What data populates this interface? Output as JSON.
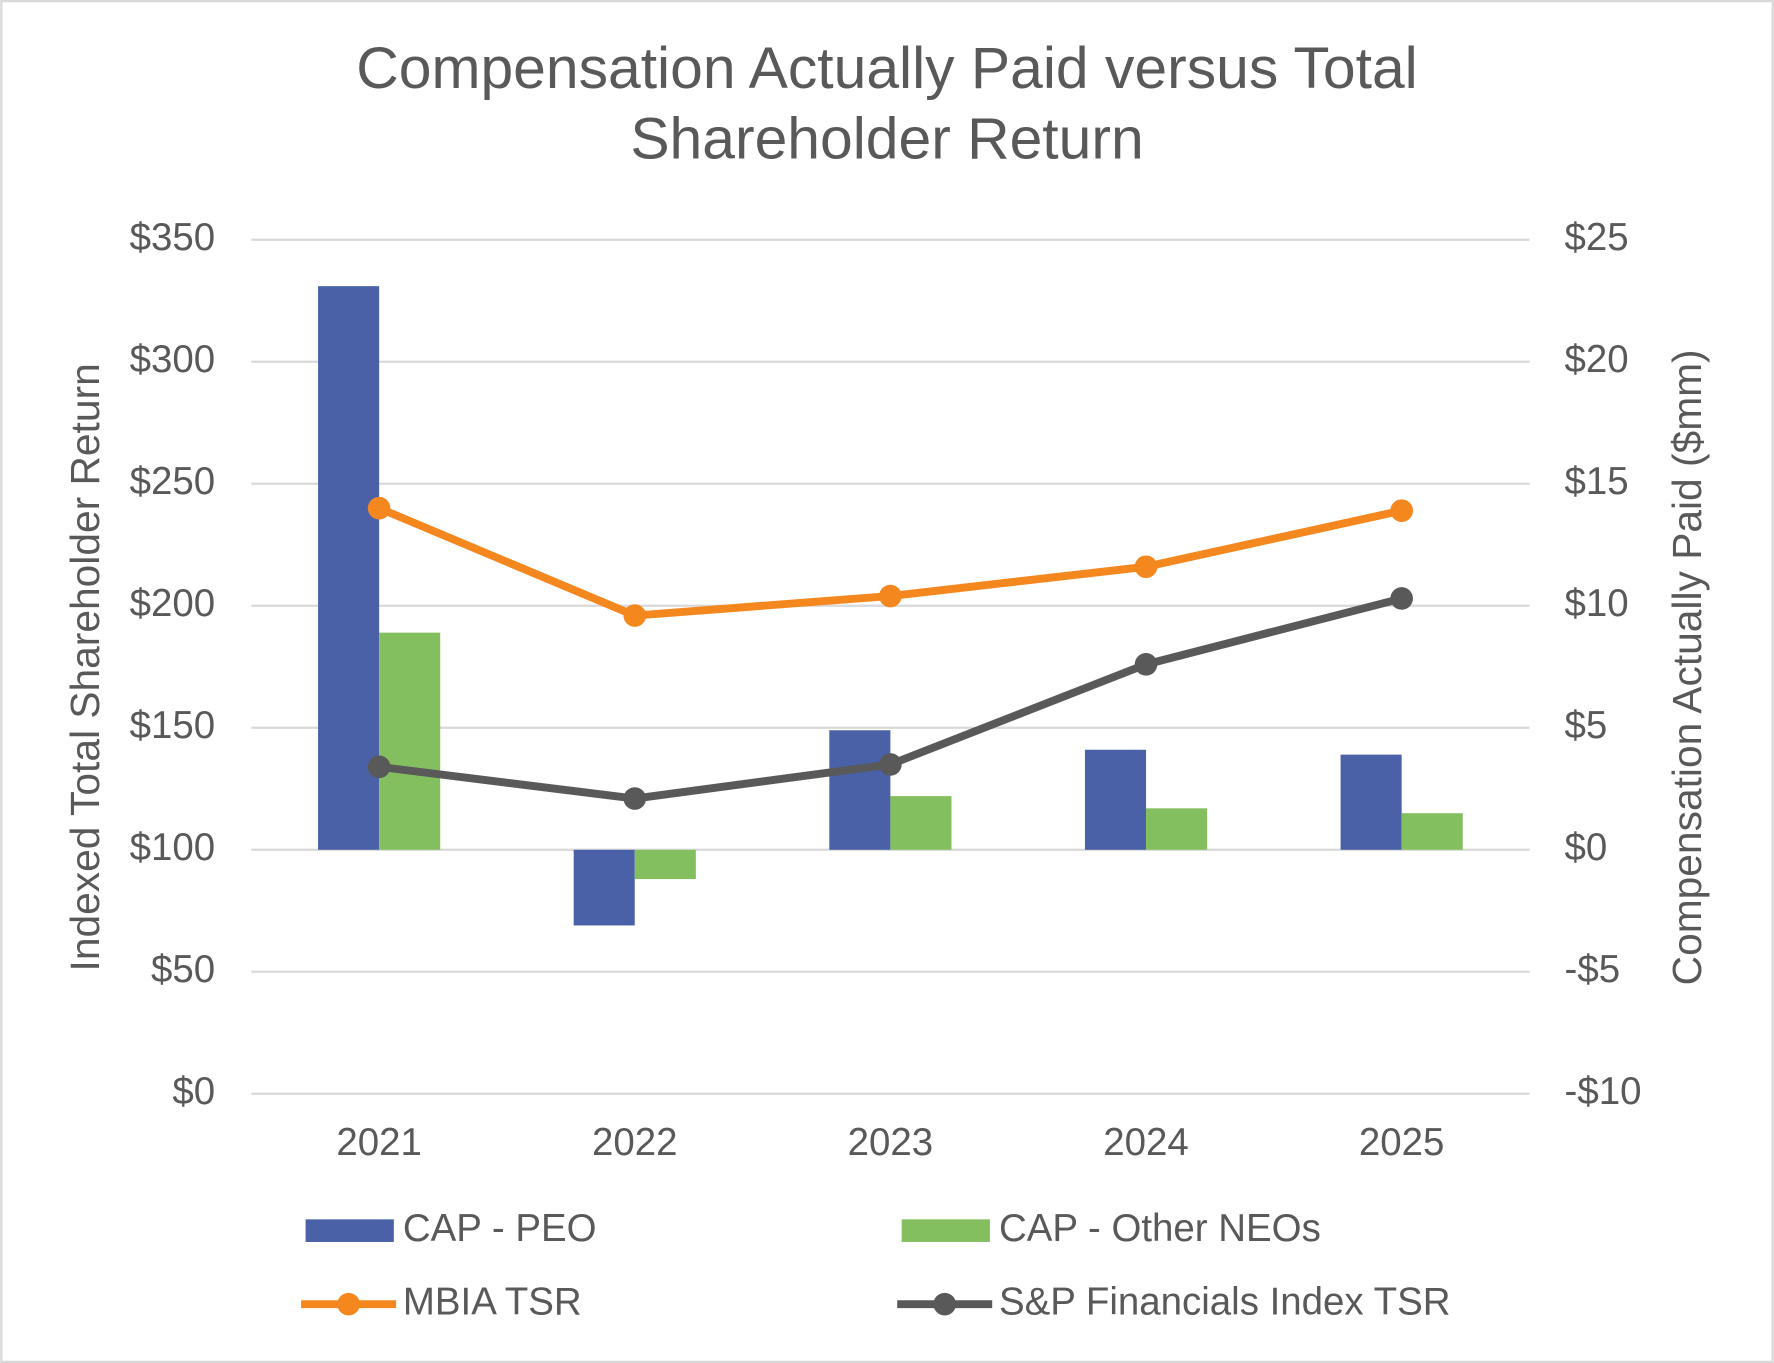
{
  "chart_data": {
    "type": "bar-line",
    "title": "Compensation Actually Paid versus Total Shareholder Return",
    "ylabel": "Indexed Total Shareholder Return",
    "y2label": "Compensation Actually Paid ($mm)",
    "categories": [
      "2021",
      "2022",
      "2023",
      "2024",
      "2025"
    ],
    "series": [
      {
        "name": "CAP - PEO",
        "type": "bar",
        "axis": "y2",
        "color": "#4a61a8",
        "values": [
          23.1,
          -3.1,
          4.9,
          4.1,
          3.9
        ]
      },
      {
        "name": "CAP - Other NEOs",
        "type": "bar",
        "axis": "y2",
        "color": "#84bf5f",
        "values": [
          8.9,
          -1.2,
          2.2,
          1.7,
          1.5
        ]
      },
      {
        "name": "MBIA TSR",
        "type": "line",
        "color": "#f5871f",
        "values": [
          240,
          196,
          204,
          216,
          239
        ]
      },
      {
        "name": "S&P Financials Index TSR",
        "type": "line",
        "color": "#595959",
        "values": [
          134,
          121,
          135,
          176,
          203
        ]
      }
    ],
    "ylim": [
      0,
      350
    ],
    "yticks": [
      {
        "value": 0,
        "label": "$0"
      },
      {
        "value": 50,
        "label": "$50"
      },
      {
        "value": 100,
        "label": "$100"
      },
      {
        "value": 150,
        "label": "$150"
      },
      {
        "value": 200,
        "label": "$200"
      },
      {
        "value": 250,
        "label": "$250"
      },
      {
        "value": 300,
        "label": "$300"
      },
      {
        "value": 350,
        "label": "$350"
      }
    ],
    "y2lim": [
      -10,
      25
    ],
    "y2ticks": [
      {
        "value": -10,
        "label": "-$10"
      },
      {
        "value": -5,
        "label": "-$5"
      },
      {
        "value": 0,
        "label": "$0"
      },
      {
        "value": 5,
        "label": "$5"
      },
      {
        "value": 10,
        "label": "$10"
      },
      {
        "value": 15,
        "label": "$15"
      },
      {
        "value": 20,
        "label": "$20"
      },
      {
        "value": 25,
        "label": "$25"
      }
    ],
    "grid": true
  }
}
